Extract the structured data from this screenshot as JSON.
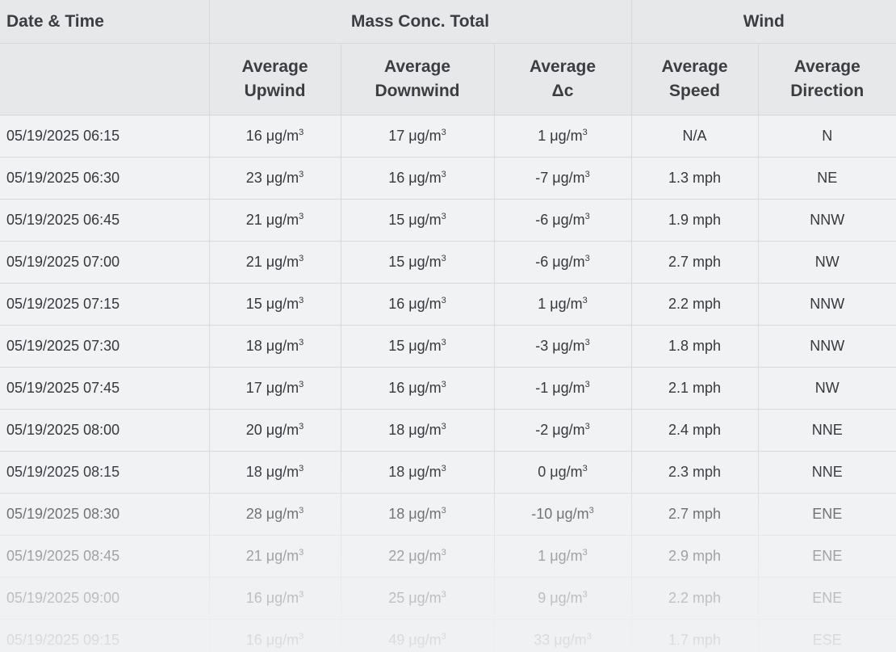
{
  "headers": {
    "date_time": "Date & Time",
    "mass_conc_total": "Mass Conc. Total",
    "wind": "Wind",
    "avg_upwind": [
      "Average",
      "Upwind"
    ],
    "avg_downwind": [
      "Average",
      "Downwind"
    ],
    "avg_delta": [
      "Average",
      "Δc"
    ],
    "avg_speed": [
      "Average",
      "Speed"
    ],
    "avg_direction": [
      "Average",
      "Direction"
    ]
  },
  "unit": "μg/m",
  "unit_exp": "3",
  "rows": [
    {
      "date": "05/19/2025 06:15",
      "up": "16",
      "down": "17",
      "delta": "1",
      "speed": "N/A",
      "dir": "N"
    },
    {
      "date": "05/19/2025 06:30",
      "up": "23",
      "down": "16",
      "delta": "-7",
      "speed": "1.3 mph",
      "dir": "NE"
    },
    {
      "date": "05/19/2025 06:45",
      "up": "21",
      "down": "15",
      "delta": "-6",
      "speed": "1.9 mph",
      "dir": "NNW"
    },
    {
      "date": "05/19/2025 07:00",
      "up": "21",
      "down": "15",
      "delta": "-6",
      "speed": "2.7 mph",
      "dir": "NW"
    },
    {
      "date": "05/19/2025 07:15",
      "up": "15",
      "down": "16",
      "delta": "1",
      "speed": "2.2 mph",
      "dir": "NNW"
    },
    {
      "date": "05/19/2025 07:30",
      "up": "18",
      "down": "15",
      "delta": "-3",
      "speed": "1.8 mph",
      "dir": "NNW"
    },
    {
      "date": "05/19/2025 07:45",
      "up": "17",
      "down": "16",
      "delta": "-1",
      "speed": "2.1 mph",
      "dir": "NW"
    },
    {
      "date": "05/19/2025 08:00",
      "up": "20",
      "down": "18",
      "delta": "-2",
      "speed": "2.4 mph",
      "dir": "NNE"
    },
    {
      "date": "05/19/2025 08:15",
      "up": "18",
      "down": "18",
      "delta": "0",
      "speed": "2.3 mph",
      "dir": "NNE"
    },
    {
      "date": "05/19/2025 08:30",
      "up": "28",
      "down": "18",
      "delta": "-10",
      "speed": "2.7 mph",
      "dir": "ENE"
    },
    {
      "date": "05/19/2025 08:45",
      "up": "21",
      "down": "22",
      "delta": "1",
      "speed": "2.9 mph",
      "dir": "ENE"
    },
    {
      "date": "05/19/2025 09:00",
      "up": "16",
      "down": "25",
      "delta": "9",
      "speed": "2.2 mph",
      "dir": "ENE"
    },
    {
      "date": "05/19/2025 09:15",
      "up": "16",
      "down": "49",
      "delta": "33",
      "speed": "1.7 mph",
      "dir": "ESE"
    }
  ]
}
